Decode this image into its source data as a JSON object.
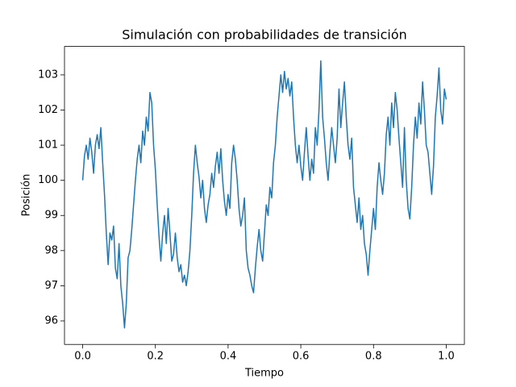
{
  "chart_data": {
    "type": "line",
    "title": "Simulación con probabilidades de transición",
    "x_label": "Tiempo",
    "y_label": "Posición",
    "x": [
      0,
      0.005,
      0.01,
      0.015,
      0.02,
      0.025,
      0.03,
      0.035,
      0.04,
      0.045,
      0.05,
      0.055,
      0.06,
      0.065,
      0.07,
      0.075,
      0.08,
      0.085,
      0.09,
      0.095,
      0.1,
      0.105,
      0.11,
      0.115,
      0.12,
      0.125,
      0.13,
      0.135,
      0.14,
      0.145,
      0.15,
      0.155,
      0.16,
      0.165,
      0.17,
      0.175,
      0.18,
      0.185,
      0.19,
      0.195,
      0.2,
      0.205,
      0.21,
      0.215,
      0.22,
      0.225,
      0.23,
      0.235,
      0.24,
      0.245,
      0.25,
      0.255,
      0.26,
      0.265,
      0.27,
      0.275,
      0.28,
      0.285,
      0.29,
      0.295,
      0.3,
      0.305,
      0.31,
      0.315,
      0.32,
      0.325,
      0.33,
      0.335,
      0.34,
      0.345,
      0.35,
      0.355,
      0.36,
      0.365,
      0.37,
      0.375,
      0.38,
      0.385,
      0.39,
      0.395,
      0.4,
      0.405,
      0.41,
      0.415,
      0.42,
      0.425,
      0.43,
      0.435,
      0.44,
      0.445,
      0.45,
      0.455,
      0.46,
      0.465,
      0.47,
      0.475,
      0.48,
      0.485,
      0.49,
      0.495,
      0.5,
      0.505,
      0.51,
      0.515,
      0.52,
      0.525,
      0.53,
      0.535,
      0.54,
      0.545,
      0.55,
      0.555,
      0.56,
      0.565,
      0.57,
      0.575,
      0.58,
      0.585,
      0.59,
      0.595,
      0.6,
      0.605,
      0.61,
      0.615,
      0.62,
      0.625,
      0.63,
      0.635,
      0.64,
      0.645,
      0.65,
      0.655,
      0.66,
      0.665,
      0.67,
      0.675,
      0.68,
      0.685,
      0.69,
      0.695,
      0.7,
      0.705,
      0.71,
      0.715,
      0.72,
      0.725,
      0.73,
      0.735,
      0.74,
      0.745,
      0.75,
      0.755,
      0.76,
      0.765,
      0.77,
      0.775,
      0.78,
      0.785,
      0.79,
      0.795,
      0.8,
      0.805,
      0.81,
      0.815,
      0.82,
      0.825,
      0.83,
      0.835,
      0.84,
      0.845,
      0.85,
      0.855,
      0.86,
      0.865,
      0.87,
      0.875,
      0.88,
      0.885,
      0.89,
      0.895,
      0.9,
      0.905,
      0.91,
      0.915,
      0.92,
      0.925,
      0.93,
      0.935,
      0.94,
      0.945,
      0.95,
      0.955,
      0.96,
      0.965,
      0.97,
      0.975,
      0.98,
      0.985,
      0.99,
      0.995,
      1.0
    ],
    "values": [
      100.0,
      100.7,
      101.0,
      100.6,
      101.2,
      100.8,
      100.2,
      101.0,
      101.3,
      100.9,
      101.5,
      100.5,
      99.6,
      98.5,
      97.6,
      98.5,
      98.3,
      98.7,
      97.5,
      97.2,
      98.2,
      97.0,
      96.5,
      95.8,
      96.5,
      97.8,
      98.0,
      98.6,
      99.3,
      100.0,
      100.6,
      101.0,
      100.5,
      101.4,
      101.0,
      101.8,
      101.4,
      102.5,
      102.2,
      101.0,
      100.3,
      99.3,
      98.4,
      97.7,
      98.5,
      99.0,
      98.2,
      99.2,
      98.5,
      97.7,
      97.9,
      98.5,
      97.8,
      97.4,
      97.6,
      97.1,
      97.3,
      97.0,
      97.4,
      98.0,
      99.0,
      100.2,
      101.0,
      100.5,
      100.1,
      99.5,
      100.0,
      99.2,
      98.8,
      99.3,
      99.6,
      100.2,
      99.8,
      100.4,
      100.8,
      100.2,
      100.9,
      100.0,
      99.4,
      99.0,
      99.6,
      99.2,
      100.5,
      101.0,
      100.6,
      100.0,
      99.2,
      98.7,
      99.0,
      99.5,
      98.0,
      97.5,
      97.3,
      97.0,
      96.8,
      97.5,
      98.1,
      98.6,
      98.0,
      97.7,
      98.5,
      99.3,
      99.0,
      99.8,
      99.5,
      100.5,
      101.0,
      101.8,
      102.4,
      103.0,
      102.5,
      103.1,
      102.6,
      102.9,
      102.4,
      102.8,
      101.8,
      101.0,
      100.5,
      101.0,
      100.4,
      100.0,
      100.8,
      101.5,
      100.7,
      100.0,
      100.6,
      100.2,
      101.5,
      101.0,
      102.0,
      103.4,
      101.8,
      101.2,
      100.5,
      100.0,
      100.8,
      101.5,
      101.0,
      100.5,
      101.2,
      102.6,
      101.5,
      102.2,
      102.8,
      101.8,
      101.0,
      100.6,
      101.2,
      99.8,
      99.3,
      98.8,
      99.5,
      98.6,
      99.0,
      98.2,
      97.9,
      97.3,
      98.0,
      98.6,
      99.2,
      98.6,
      99.8,
      100.5,
      100.0,
      99.6,
      100.2,
      101.3,
      101.8,
      101.0,
      102.2,
      101.5,
      102.5,
      102.0,
      101.2,
      100.5,
      99.8,
      101.5,
      100.0,
      99.2,
      98.9,
      99.8,
      101.0,
      101.8,
      101.2,
      102.2,
      101.6,
      102.8,
      102.0,
      101.0,
      100.8,
      100.2,
      99.6,
      100.4,
      101.8,
      102.4,
      103.2,
      102.0,
      101.6,
      102.6,
      102.3
    ],
    "color": "#1f77b4",
    "xlim": [
      -0.05,
      1.05
    ],
    "xticks": [
      {
        "value": 0,
        "label": "0.0"
      },
      0.2,
      0.4,
      0.6,
      0.8,
      {
        "value": 1,
        "label": "1.0"
      }
    ],
    "ylim": [
      95.33,
      103.81
    ],
    "yticks": [
      96,
      97,
      98,
      99,
      100,
      101,
      102,
      103
    ]
  }
}
